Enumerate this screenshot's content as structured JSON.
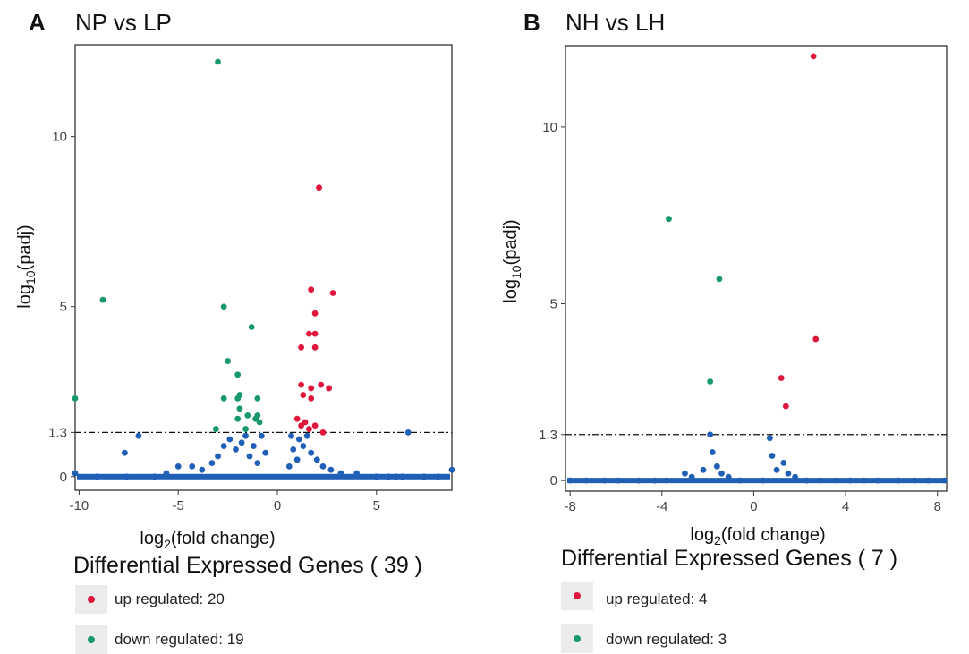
{
  "colors": {
    "up": "#e0173c",
    "down": "#17986a",
    "ns": "#1f5fb6"
  },
  "chart_data": [
    {
      "type": "scatter",
      "panel_letter": "A",
      "title": "NP vs LP",
      "xlabel": "log2(fold change)",
      "ylabel": "log10(padj)",
      "xlim": [
        -10.2,
        8.8
      ],
      "ylim": [
        -0.4,
        12.7
      ],
      "xticks": [
        -10,
        -5,
        0,
        5
      ],
      "yticks": [
        0,
        1.3,
        5,
        10
      ],
      "threshold": 1.3,
      "legend_title": "Differential Expressed Genes ( 39 )",
      "legend": [
        {
          "label": "up regulated: 20",
          "color": "up"
        },
        {
          "label": "down regulated: 19",
          "color": "down"
        }
      ],
      "series": [
        {
          "color": "down",
          "points": [
            [
              -3.0,
              12.2
            ],
            [
              -8.8,
              5.2
            ],
            [
              -10.2,
              2.3
            ],
            [
              -2.7,
              5.0
            ],
            [
              -1.3,
              4.4
            ],
            [
              -2.5,
              3.4
            ],
            [
              -2.0,
              3.0
            ],
            [
              -1.9,
              2.4
            ],
            [
              -2.0,
              2.3
            ],
            [
              -1.0,
              2.3
            ],
            [
              -2.7,
              2.3
            ],
            [
              -1.9,
              2.0
            ],
            [
              -1.0,
              1.8
            ],
            [
              -1.5,
              1.8
            ],
            [
              -2.0,
              1.7
            ],
            [
              -0.9,
              1.6
            ],
            [
              -1.1,
              1.7
            ],
            [
              -3.1,
              1.4
            ],
            [
              -1.6,
              1.4
            ]
          ]
        },
        {
          "color": "up",
          "points": [
            [
              2.1,
              8.5
            ],
            [
              1.7,
              5.5
            ],
            [
              2.8,
              5.4
            ],
            [
              1.9,
              4.8
            ],
            [
              1.6,
              4.2
            ],
            [
              1.9,
              4.2
            ],
            [
              1.2,
              3.8
            ],
            [
              1.9,
              3.8
            ],
            [
              2.2,
              2.7
            ],
            [
              1.2,
              2.7
            ],
            [
              1.7,
              2.6
            ],
            [
              2.6,
              2.6
            ],
            [
              1.3,
              2.4
            ],
            [
              1.7,
              2.3
            ],
            [
              1.0,
              1.7
            ],
            [
              1.4,
              1.6
            ],
            [
              1.2,
              1.5
            ],
            [
              1.9,
              1.5
            ],
            [
              1.6,
              1.4
            ],
            [
              2.3,
              1.3
            ]
          ]
        },
        {
          "color": "ns",
          "points": [
            [
              -10.2,
              0.1
            ],
            [
              -9.1,
              0.0
            ],
            [
              -7.6,
              0.0
            ],
            [
              -7.7,
              0.7
            ],
            [
              -7.0,
              1.2
            ],
            [
              -6.2,
              0.0
            ],
            [
              -5.6,
              0.1
            ],
            [
              -5.0,
              0.3
            ],
            [
              -4.3,
              0.3
            ],
            [
              -3.8,
              0.2
            ],
            [
              -3.3,
              0.4
            ],
            [
              -3.0,
              0.6
            ],
            [
              -2.7,
              0.9
            ],
            [
              -2.4,
              1.1
            ],
            [
              -2.1,
              0.8
            ],
            [
              -1.8,
              1.0
            ],
            [
              -1.6,
              1.2
            ],
            [
              -1.4,
              0.6
            ],
            [
              -1.2,
              0.9
            ],
            [
              -1.0,
              0.4
            ],
            [
              -0.8,
              1.2
            ],
            [
              -0.6,
              0.7
            ],
            [
              0.6,
              0.3
            ],
            [
              0.7,
              1.2
            ],
            [
              0.8,
              0.8
            ],
            [
              1.0,
              0.5
            ],
            [
              1.1,
              1.1
            ],
            [
              1.3,
              0.9
            ],
            [
              1.5,
              1.2
            ],
            [
              1.7,
              0.7
            ],
            [
              2.0,
              0.5
            ],
            [
              2.3,
              0.3
            ],
            [
              2.7,
              0.2
            ],
            [
              3.2,
              0.1
            ],
            [
              4.0,
              0.1
            ],
            [
              5.0,
              0.0
            ],
            [
              5.6,
              0.0
            ],
            [
              6.0,
              0.0
            ],
            [
              6.3,
              0.0
            ],
            [
              6.6,
              1.3
            ],
            [
              7.4,
              0.0
            ],
            [
              8.1,
              0.0
            ],
            [
              8.8,
              0.2
            ]
          ]
        }
      ]
    },
    {
      "type": "scatter",
      "panel_letter": "B",
      "title": "NH vs LH",
      "xlabel": "log2(fold change)",
      "ylabel": "log10(padj)",
      "xlim": [
        -8.2,
        8.4
      ],
      "ylim": [
        -0.3,
        12.3
      ],
      "xticks": [
        -8,
        -4,
        0,
        4,
        8
      ],
      "yticks": [
        0,
        1.3,
        5,
        10
      ],
      "threshold": 1.3,
      "legend_title": "Differential Expressed Genes ( 7 )",
      "legend": [
        {
          "label": "up regulated: 4",
          "color": "up"
        },
        {
          "label": "down regulated: 3",
          "color": "down"
        }
      ],
      "series": [
        {
          "color": "up",
          "points": [
            [
              2.6,
              12.0
            ],
            [
              2.7,
              4.0
            ],
            [
              1.2,
              2.9
            ],
            [
              1.4,
              2.1
            ]
          ]
        },
        {
          "color": "down",
          "points": [
            [
              -3.7,
              7.4
            ],
            [
              -1.5,
              5.7
            ],
            [
              -1.9,
              2.8
            ]
          ]
        },
        {
          "color": "ns",
          "points": [
            [
              -8.0,
              0.0
            ],
            [
              -7.3,
              0.0
            ],
            [
              -6.5,
              0.0
            ],
            [
              -5.9,
              0.0
            ],
            [
              -5.0,
              0.0
            ],
            [
              -4.3,
              0.0
            ],
            [
              -3.8,
              0.0
            ],
            [
              -3.0,
              0.2
            ],
            [
              -2.7,
              0.1
            ],
            [
              -2.2,
              0.3
            ],
            [
              -1.9,
              1.3
            ],
            [
              -1.8,
              0.8
            ],
            [
              -1.6,
              0.4
            ],
            [
              -1.4,
              0.2
            ],
            [
              -1.1,
              0.1
            ],
            [
              -0.6,
              0.0
            ],
            [
              0.4,
              0.0
            ],
            [
              0.7,
              1.2
            ],
            [
              0.8,
              0.7
            ],
            [
              1.0,
              0.3
            ],
            [
              1.3,
              0.5
            ],
            [
              1.5,
              0.2
            ],
            [
              1.8,
              0.1
            ],
            [
              2.3,
              0.0
            ],
            [
              2.9,
              0.0
            ],
            [
              3.6,
              0.0
            ],
            [
              4.2,
              0.0
            ],
            [
              4.8,
              0.0
            ],
            [
              5.4,
              0.0
            ],
            [
              6.3,
              0.0
            ],
            [
              7.0,
              0.0
            ],
            [
              7.6,
              0.0
            ],
            [
              8.3,
              0.0
            ]
          ]
        }
      ]
    }
  ]
}
